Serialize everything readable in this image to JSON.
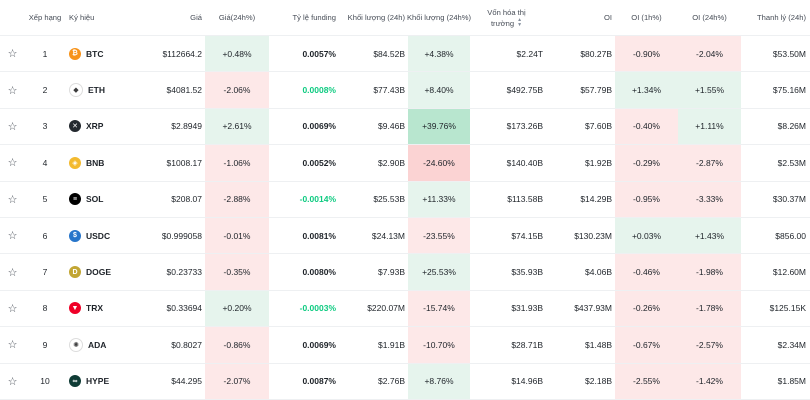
{
  "headers": {
    "rank": "Xếp hạng",
    "symbol": "Ký hiệu",
    "price": "Giá",
    "price_change": "Giá(24h%)",
    "funding": "Tỷ lệ funding",
    "volume": "Khối lượng (24h)",
    "volume_change": "Khối lượng (24h%)",
    "market_cap_line1": "Vốn hóa thị",
    "market_cap_line2": "trường",
    "oi": "OI",
    "oi_1h": "OI (1h%)",
    "oi_24h": "OI (24h%)",
    "liquidation": "Thanh lý (24h)"
  },
  "rows": [
    {
      "rank": "1",
      "symbol": "BTC",
      "icon": "btc-icon",
      "icon_color": "#f7931a",
      "icon_glyph": "₿",
      "price": "$112664.2",
      "price_change": "+0.48%",
      "pc_dir": "pos",
      "funding": "0.0057%",
      "funding_color": "dark",
      "volume": "$84.52B",
      "volume_change": "+4.38%",
      "vc_dir": "pos",
      "market_cap": "$2.24T",
      "oi": "$80.27B",
      "oi_1h": "-0.90%",
      "oi1_dir": "neg",
      "oi_24h": "-2.04%",
      "oi24_dir": "neg",
      "liquidation": "$53.50M"
    },
    {
      "rank": "2",
      "symbol": "ETH",
      "icon": "eth-icon",
      "icon_color": "#ffffff",
      "icon_glyph": "◆",
      "price": "$4081.52",
      "price_change": "-2.06%",
      "pc_dir": "neg",
      "funding": "0.0008%",
      "funding_color": "green",
      "volume": "$77.43B",
      "volume_change": "+8.40%",
      "vc_dir": "pos",
      "market_cap": "$492.75B",
      "oi": "$57.79B",
      "oi_1h": "+1.34%",
      "oi1_dir": "pos",
      "oi_24h": "+1.55%",
      "oi24_dir": "pos",
      "liquidation": "$75.16M"
    },
    {
      "rank": "3",
      "symbol": "XRP",
      "icon": "xrp-icon",
      "icon_color": "#23292f",
      "icon_glyph": "✕",
      "price": "$2.8949",
      "price_change": "+2.61%",
      "pc_dir": "pos",
      "funding": "0.0069%",
      "funding_color": "dark",
      "volume": "$9.46B",
      "volume_change": "+39.76%",
      "vc_dir": "pos-strong",
      "market_cap": "$173.26B",
      "oi": "$7.60B",
      "oi_1h": "-0.40%",
      "oi1_dir": "neg",
      "oi_24h": "+1.11%",
      "oi24_dir": "pos",
      "liquidation": "$8.26M"
    },
    {
      "rank": "4",
      "symbol": "BNB",
      "icon": "bnb-icon",
      "icon_color": "#f3ba2f",
      "icon_glyph": "◈",
      "price": "$1008.17",
      "price_change": "-1.06%",
      "pc_dir": "neg",
      "funding": "0.0052%",
      "funding_color": "dark",
      "volume": "$2.90B",
      "volume_change": "-24.60%",
      "vc_dir": "neg-strong",
      "market_cap": "$140.40B",
      "oi": "$1.92B",
      "oi_1h": "-0.29%",
      "oi1_dir": "neg",
      "oi_24h": "-2.87%",
      "oi24_dir": "neg",
      "liquidation": "$2.53M"
    },
    {
      "rank": "5",
      "symbol": "SOL",
      "icon": "sol-icon",
      "icon_color": "#000000",
      "icon_glyph": "≡",
      "price": "$208.07",
      "price_change": "-2.88%",
      "pc_dir": "neg",
      "funding": "-0.0014%",
      "funding_color": "green",
      "volume": "$25.53B",
      "volume_change": "+11.33%",
      "vc_dir": "pos",
      "market_cap": "$113.58B",
      "oi": "$14.29B",
      "oi_1h": "-0.95%",
      "oi1_dir": "neg",
      "oi_24h": "-3.33%",
      "oi24_dir": "neg",
      "liquidation": "$30.37M"
    },
    {
      "rank": "6",
      "symbol": "USDC",
      "icon": "usdc-icon",
      "icon_color": "#2775ca",
      "icon_glyph": "$",
      "price": "$0.999058",
      "price_change": "-0.01%",
      "pc_dir": "neg",
      "funding": "0.0081%",
      "funding_color": "dark",
      "volume": "$24.13M",
      "volume_change": "-23.55%",
      "vc_dir": "neg",
      "market_cap": "$74.15B",
      "oi": "$130.23M",
      "oi_1h": "+0.03%",
      "oi1_dir": "pos",
      "oi_24h": "+1.43%",
      "oi24_dir": "pos",
      "liquidation": "$856.00"
    },
    {
      "rank": "7",
      "symbol": "DOGE",
      "icon": "doge-icon",
      "icon_color": "#c2a633",
      "icon_glyph": "D",
      "price": "$0.23733",
      "price_change": "-0.35%",
      "pc_dir": "neg",
      "funding": "0.0080%",
      "funding_color": "dark",
      "volume": "$7.93B",
      "volume_change": "+25.53%",
      "vc_dir": "pos",
      "market_cap": "$35.93B",
      "oi": "$4.06B",
      "oi_1h": "-0.46%",
      "oi1_dir": "neg",
      "oi_24h": "-1.98%",
      "oi24_dir": "neg",
      "liquidation": "$12.60M"
    },
    {
      "rank": "8",
      "symbol": "TRX",
      "icon": "trx-icon",
      "icon_color": "#ef0027",
      "icon_glyph": "▼",
      "price": "$0.33694",
      "price_change": "+0.20%",
      "pc_dir": "pos",
      "funding": "-0.0003%",
      "funding_color": "green",
      "volume": "$220.07M",
      "volume_change": "-15.74%",
      "vc_dir": "neg",
      "market_cap": "$31.93B",
      "oi": "$437.93M",
      "oi_1h": "-0.26%",
      "oi1_dir": "neg",
      "oi_24h": "-1.78%",
      "oi24_dir": "neg",
      "liquidation": "$125.15K"
    },
    {
      "rank": "9",
      "symbol": "ADA",
      "icon": "ada-icon",
      "icon_color": "#ffffff",
      "icon_glyph": "✺",
      "price": "$0.8027",
      "price_change": "-0.86%",
      "pc_dir": "neg",
      "funding": "0.0069%",
      "funding_color": "dark",
      "volume": "$1.91B",
      "volume_change": "-10.70%",
      "vc_dir": "neg",
      "market_cap": "$28.71B",
      "oi": "$1.48B",
      "oi_1h": "-0.67%",
      "oi1_dir": "neg",
      "oi_24h": "-2.57%",
      "oi24_dir": "neg",
      "liquidation": "$2.34M"
    },
    {
      "rank": "10",
      "symbol": "HYPE",
      "icon": "hype-icon",
      "icon_color": "#0f3b35",
      "icon_glyph": "∞",
      "price": "$44.295",
      "price_change": "-2.07%",
      "pc_dir": "neg",
      "funding": "0.0087%",
      "funding_color": "dark",
      "volume": "$2.76B",
      "volume_change": "+8.76%",
      "vc_dir": "pos",
      "market_cap": "$14.96B",
      "oi": "$2.18B",
      "oi_1h": "-2.55%",
      "oi1_dir": "neg",
      "oi_24h": "-1.42%",
      "oi24_dir": "neg",
      "liquidation": "$1.85M"
    }
  ],
  "star_glyph": "☆",
  "sort_icon": "sort-icon"
}
